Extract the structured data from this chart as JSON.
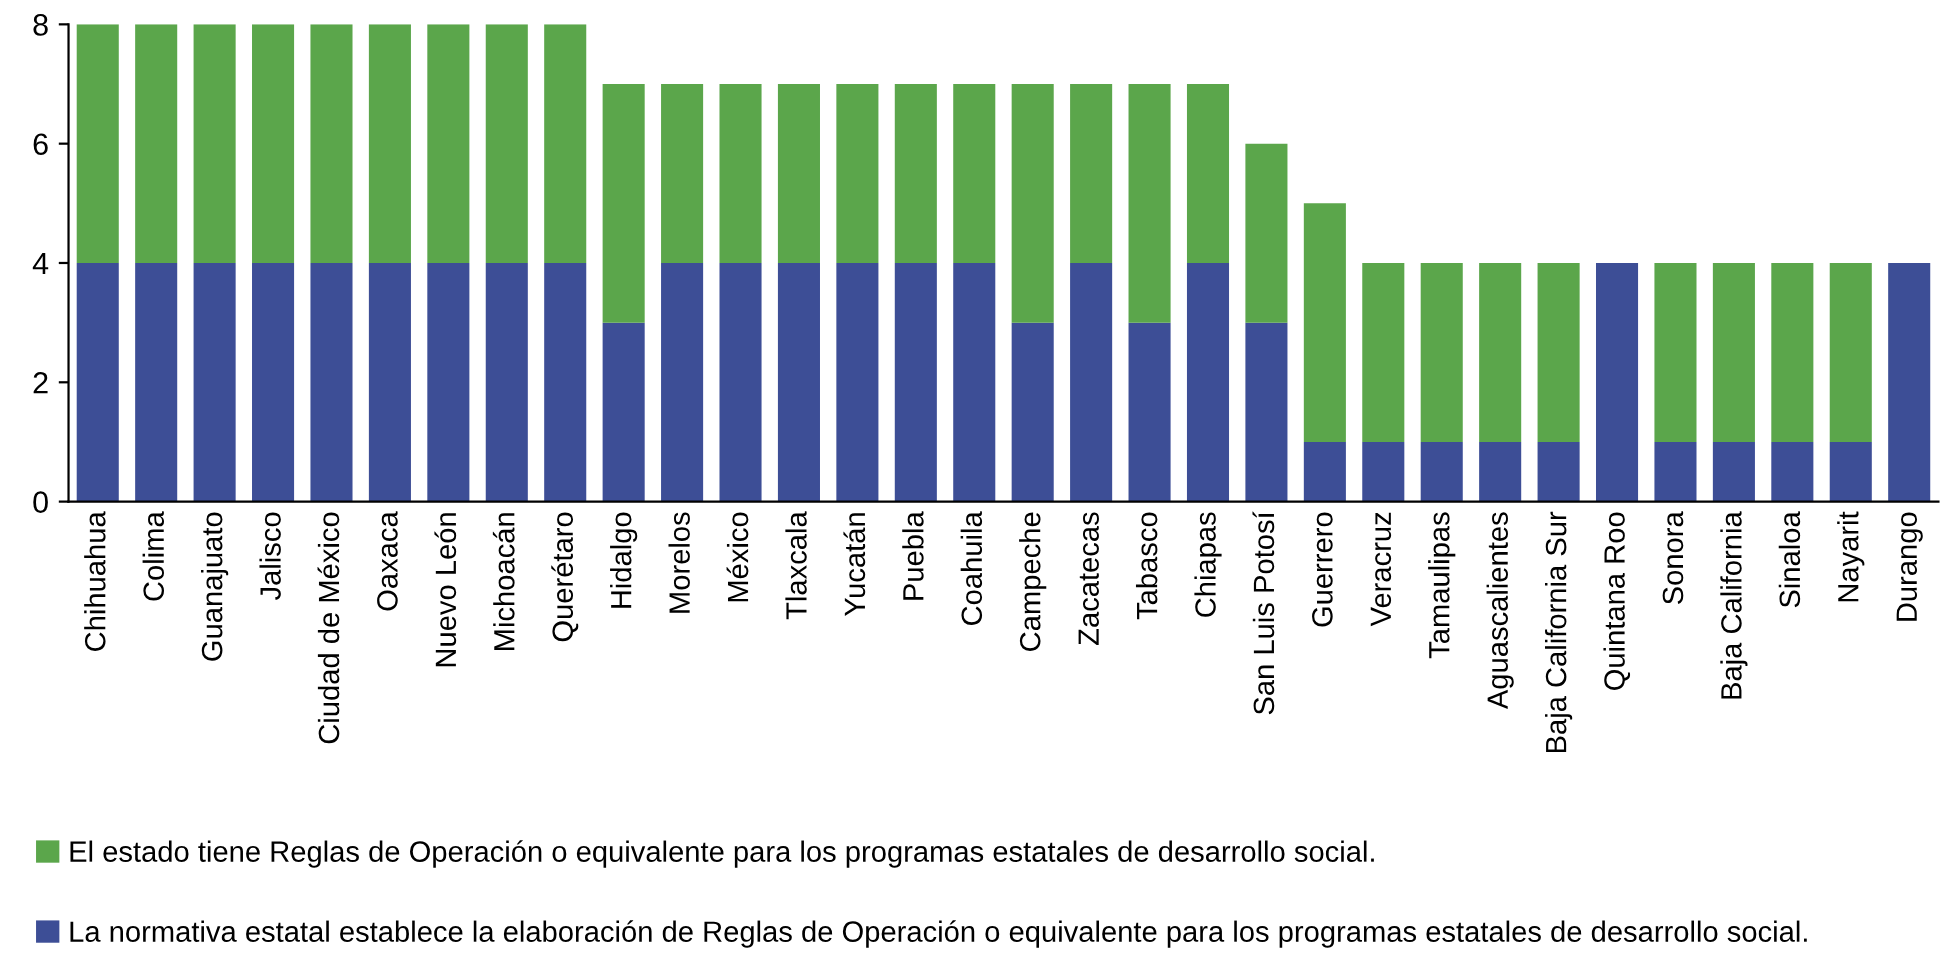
{
  "chart_data": {
    "type": "bar",
    "stacked": true,
    "categories": [
      "Chihuahua",
      "Colima",
      "Guanajuato",
      "Jalisco",
      "Ciudad de México",
      "Oaxaca",
      "Nuevo León",
      "Michoacán",
      "Querétaro",
      "Hidalgo",
      "Morelos",
      "México",
      "Tlaxcala",
      "Yucatán",
      "Puebla",
      "Coahuila",
      "Campeche",
      "Zacatecas",
      "Tabasco",
      "Chiapas",
      "San Luis Potosí",
      "Guerrero",
      "Veracruz",
      "Tamaulipas",
      "Aguascalientes",
      "Baja California Sur",
      "Quintana Roo",
      "Sonora",
      "Baja California",
      "Sinaloa",
      "Nayarit",
      "Durango"
    ],
    "series": [
      {
        "name": "La normativa estatal establece la elaboración de Reglas de Operación o equivalente para los programas estatales de desarrollo social.",
        "color": "#3d4e96",
        "values": [
          4,
          4,
          4,
          4,
          4,
          4,
          4,
          4,
          4,
          3,
          4,
          4,
          4,
          4,
          4,
          4,
          3,
          4,
          3,
          4,
          3,
          1,
          1,
          1,
          1,
          1,
          4,
          1,
          1,
          1,
          1,
          4
        ]
      },
      {
        "name": "El estado tiene Reglas de Operación o equivalente para los programas estatales de desarrollo social.",
        "color": "#5ba64b",
        "values": [
          4,
          4,
          4,
          4,
          4,
          4,
          4,
          4,
          4,
          4,
          3,
          3,
          3,
          3,
          3,
          3,
          4,
          3,
          4,
          3,
          3,
          4,
          3,
          3,
          3,
          3,
          0,
          3,
          3,
          3,
          3,
          0
        ]
      }
    ],
    "ylim": [
      0,
      8
    ],
    "yticks": [
      0,
      2,
      4,
      6,
      8
    ],
    "grid": false,
    "legend": "bottom"
  }
}
